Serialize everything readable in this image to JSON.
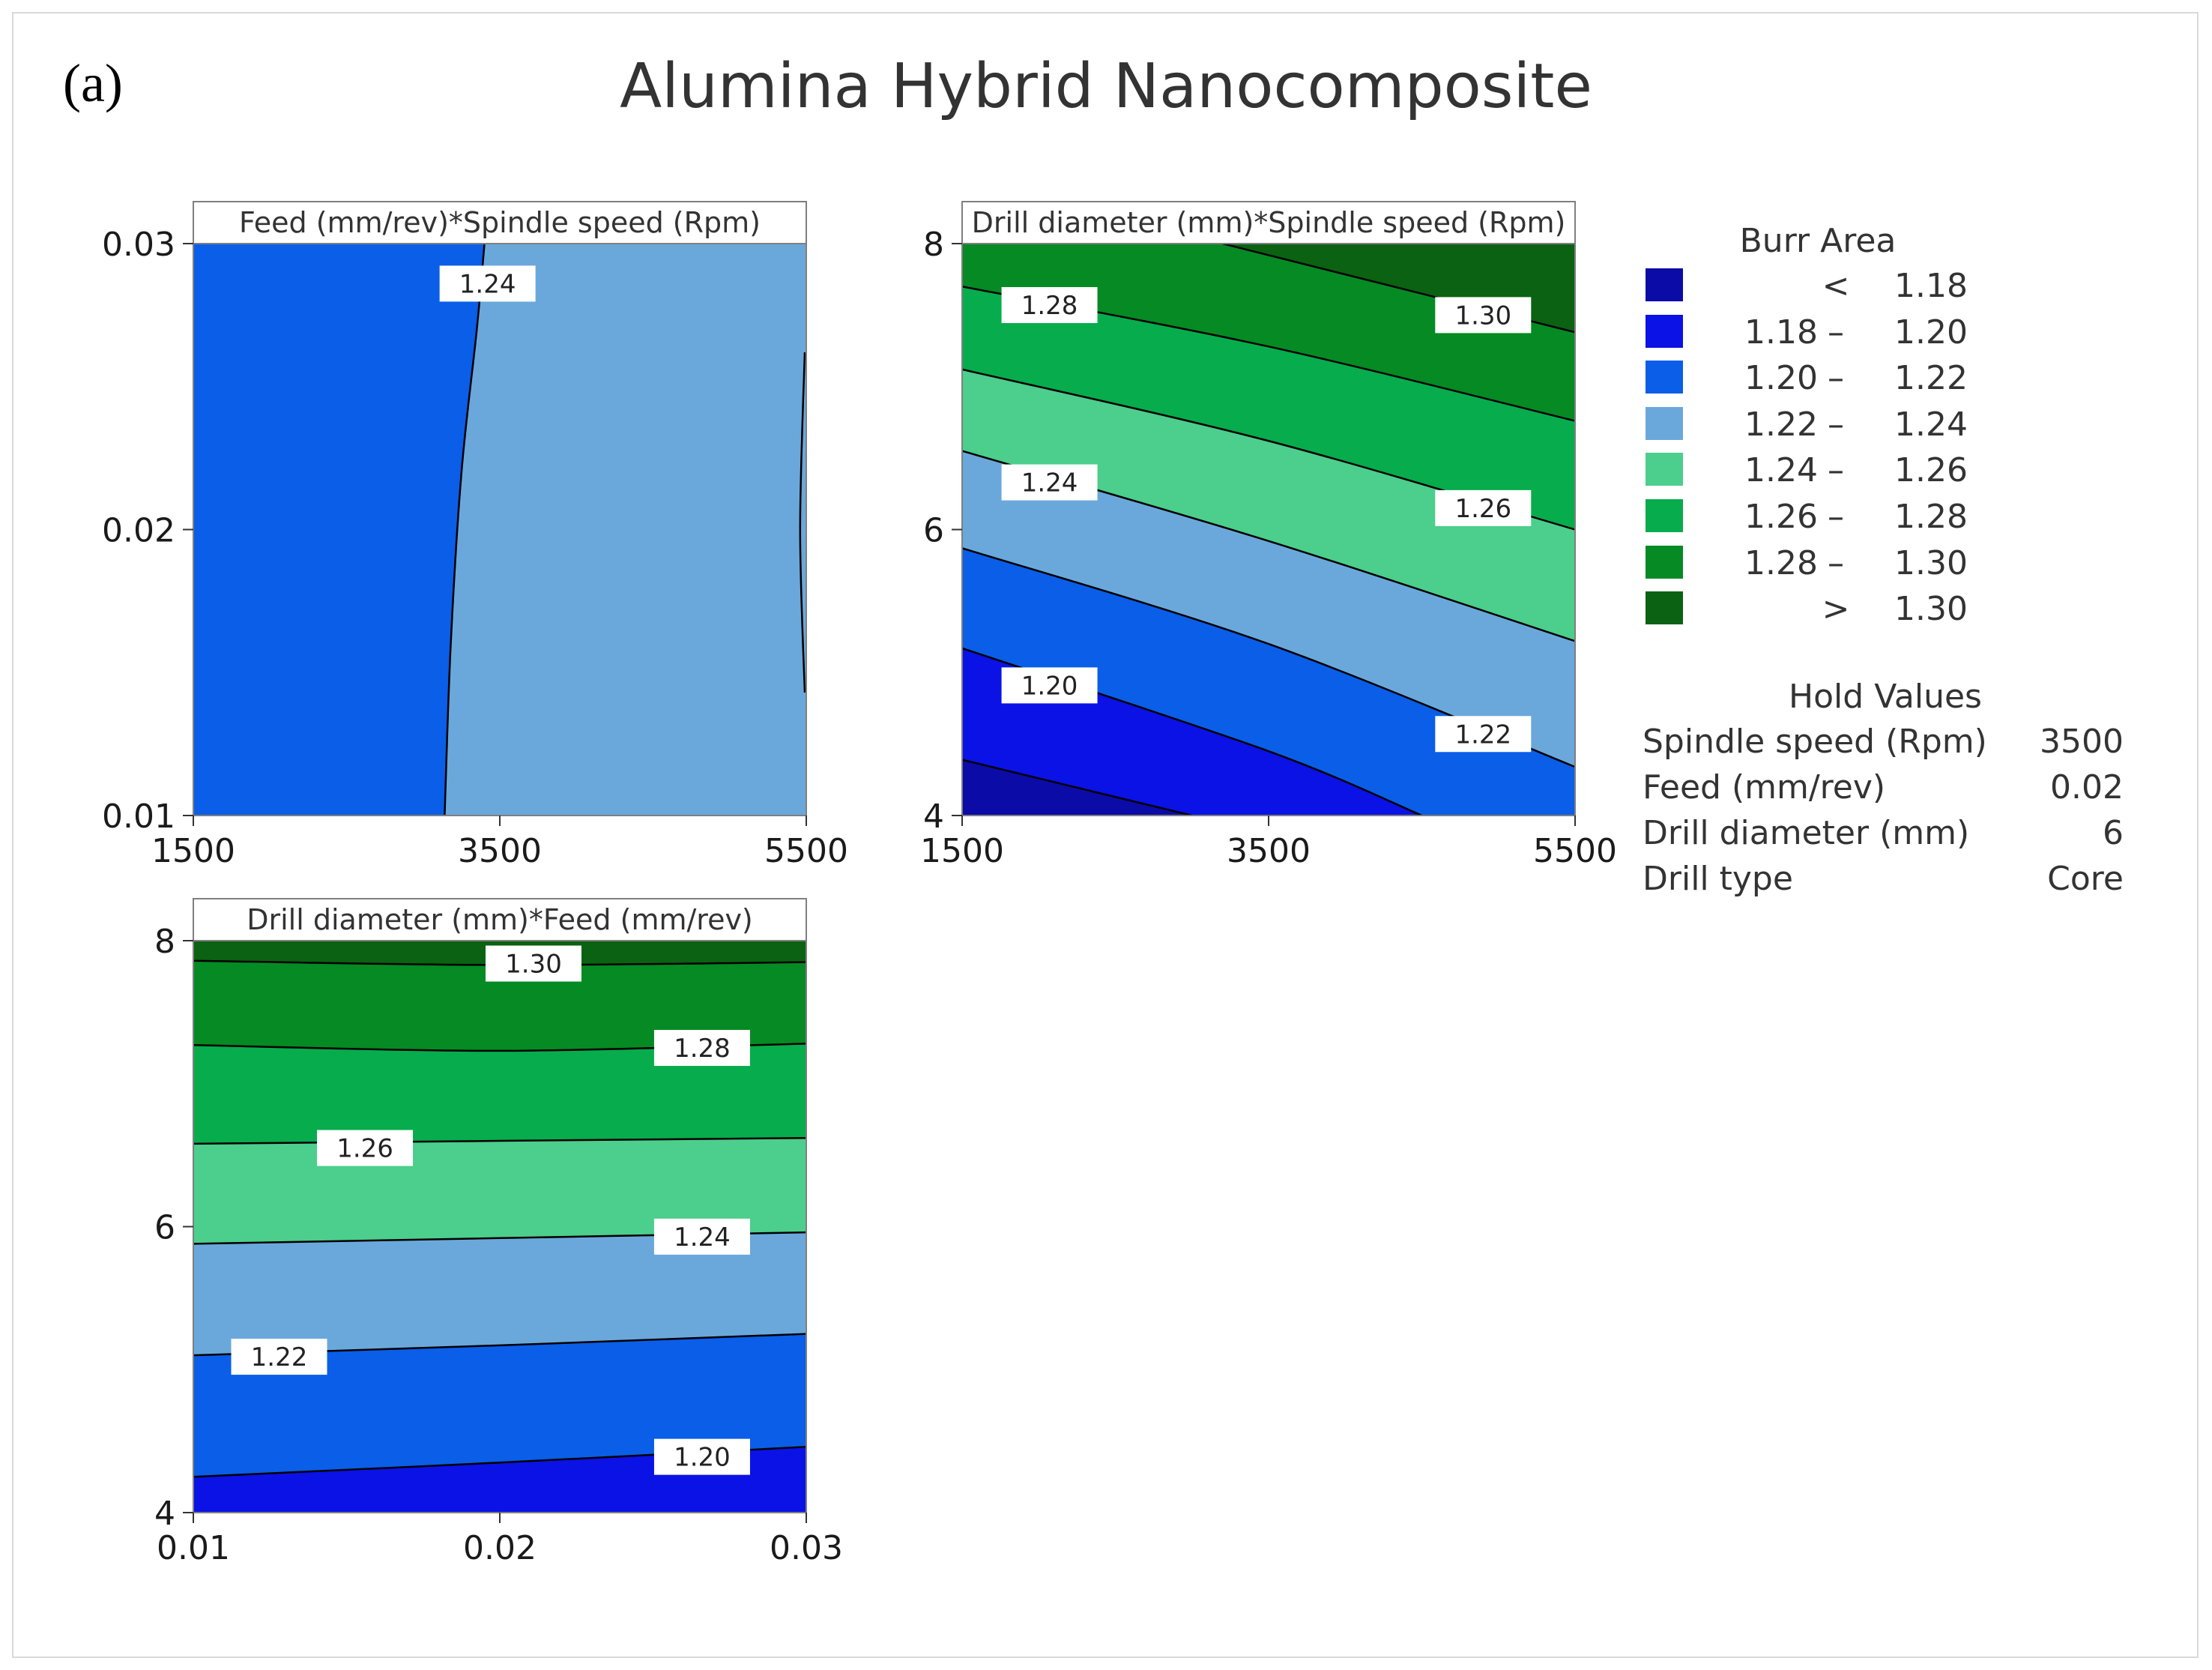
{
  "figure": {
    "panel_letter": "(a)",
    "title": "Alumina Hybrid Nanocomposite"
  },
  "legend": {
    "title": "Burr Area",
    "items": [
      {
        "lo": "",
        "op": "<",
        "hi": "1.18",
        "color": "#0b0ba8"
      },
      {
        "lo": "1.18",
        "op": "–",
        "hi": "1.20",
        "color": "#0a12e6"
      },
      {
        "lo": "1.20",
        "op": "–",
        "hi": "1.22",
        "color": "#0a5ee8"
      },
      {
        "lo": "1.22",
        "op": "–",
        "hi": "1.24",
        "color": "#6aa8dc"
      },
      {
        "lo": "1.24",
        "op": "–",
        "hi": "1.26",
        "color": "#4cce8c"
      },
      {
        "lo": "1.26",
        "op": "–",
        "hi": "1.28",
        "color": "#07ac4c"
      },
      {
        "lo": "1.28",
        "op": "–",
        "hi": "1.30",
        "color": "#058a24"
      },
      {
        "lo": "",
        "op": ">",
        "hi": "1.30",
        "color": "#0a6212"
      }
    ]
  },
  "hold_values": {
    "title": "Hold Values",
    "rows": [
      {
        "name": "Spindle speed (Rpm)",
        "value": "3500"
      },
      {
        "name": "Feed (mm/rev)",
        "value": "0.02"
      },
      {
        "name": "Drill diameter (mm)",
        "value": "6"
      },
      {
        "name": "Drill type",
        "value": "Core"
      }
    ]
  },
  "chart_data": [
    {
      "type": "contour",
      "title": "Feed (mm/rev)*Spindle speed (Rpm)",
      "xlim": [
        1500,
        5500
      ],
      "ylim": [
        0.01,
        0.03
      ],
      "x_ticks": [
        "1500",
        "3500",
        "5500"
      ],
      "y_ticks": [
        "0.01",
        "0.02",
        "0.03"
      ],
      "contours": [
        {
          "level": "1.24",
          "points": [
            [
              3400,
              0.03
            ],
            [
              3350,
              0.027
            ],
            [
              3250,
              0.022
            ],
            [
              3180,
              0.016
            ],
            [
              3140,
              0.01
            ]
          ],
          "label_at": [
            3420,
            0.0286
          ]
        },
        {
          "level": "1.26",
          "points": [
            [
              5490,
              0.0262
            ],
            [
              5460,
              0.02
            ],
            [
              5490,
              0.0143
            ]
          ]
        }
      ],
      "regions": [
        {
          "range": "1.22 – 1.24",
          "x_range": [
            1500,
            3400
          ]
        },
        {
          "range": "1.24 – 1.26",
          "x_range": [
            3140,
            5500
          ]
        }
      ]
    },
    {
      "type": "contour",
      "title": "Drill diameter (mm)*Spindle speed (Rpm)",
      "xlim": [
        1500,
        5500
      ],
      "ylim": [
        4,
        8
      ],
      "x_ticks": [
        "1500",
        "3500",
        "5500"
      ],
      "y_ticks": [
        "4",
        "6",
        "8"
      ],
      "contours": [
        {
          "level": "1.18",
          "points": [
            [
              1500,
              4.39
            ],
            [
              3000,
              4.0
            ]
          ]
        },
        {
          "level": "1.20",
          "points": [
            [
              1500,
              5.17
            ],
            [
              3500,
              4.45
            ],
            [
              4500,
              4.0
            ]
          ]
        },
        {
          "level": "1.22",
          "points": [
            [
              1500,
              5.87
            ],
            [
              3500,
              5.2
            ],
            [
              5500,
              4.34
            ]
          ]
        },
        {
          "level": "1.24",
          "points": [
            [
              1500,
              6.55
            ],
            [
              3500,
              5.92
            ],
            [
              5500,
              5.22
            ]
          ]
        },
        {
          "level": "1.26",
          "points": [
            [
              1500,
              7.12
            ],
            [
              3500,
              6.62
            ],
            [
              5500,
              6.0
            ]
          ]
        },
        {
          "level": "1.28",
          "points": [
            [
              1500,
              7.7
            ],
            [
              3500,
              7.28
            ],
            [
              5500,
              6.76
            ]
          ]
        },
        {
          "level": "1.30",
          "points": [
            [
              3200,
              8.0
            ],
            [
              5500,
              7.38
            ]
          ]
        }
      ],
      "labels": [
        {
          "text": "1.28",
          "at": [
            2070,
            7.57
          ]
        },
        {
          "text": "1.30",
          "at": [
            4900,
            7.5
          ]
        },
        {
          "text": "1.24",
          "at": [
            2070,
            6.33
          ]
        },
        {
          "text": "1.26",
          "at": [
            4900,
            6.15
          ]
        },
        {
          "text": "1.20",
          "at": [
            2070,
            4.91
          ]
        },
        {
          "text": "1.22",
          "at": [
            4900,
            4.57
          ]
        }
      ]
    },
    {
      "type": "contour",
      "title": "Drill diameter (mm)*Feed (mm/rev)",
      "xlim": [
        0.01,
        0.03
      ],
      "ylim": [
        4,
        8
      ],
      "x_ticks": [
        "0.01",
        "0.02",
        "0.03"
      ],
      "y_ticks": [
        "4",
        "6",
        "8"
      ],
      "contours": [
        {
          "level": "1.30",
          "points": [
            [
              0.01,
              7.86
            ],
            [
              0.02,
              7.83
            ],
            [
              0.03,
              7.85
            ]
          ]
        },
        {
          "level": "1.28",
          "points": [
            [
              0.01,
              7.27
            ],
            [
              0.02,
              7.23
            ],
            [
              0.03,
              7.28
            ]
          ]
        },
        {
          "level": "1.26",
          "points": [
            [
              0.01,
              6.58
            ],
            [
              0.02,
              6.6
            ],
            [
              0.03,
              6.62
            ]
          ]
        },
        {
          "level": "1.24",
          "points": [
            [
              0.01,
              5.88
            ],
            [
              0.02,
              5.92
            ],
            [
              0.03,
              5.96
            ]
          ]
        },
        {
          "level": "1.22",
          "points": [
            [
              0.01,
              5.1
            ],
            [
              0.02,
              5.17
            ],
            [
              0.03,
              5.25
            ]
          ]
        },
        {
          "level": "1.20",
          "points": [
            [
              0.01,
              4.25
            ],
            [
              0.02,
              4.35
            ],
            [
              0.03,
              4.46
            ]
          ]
        }
      ],
      "labels": [
        {
          "text": "1.30",
          "at": [
            0.0211,
            7.84
          ]
        },
        {
          "text": "1.28",
          "at": [
            0.0266,
            7.25
          ]
        },
        {
          "text": "1.26",
          "at": [
            0.0156,
            6.55
          ]
        },
        {
          "text": "1.24",
          "at": [
            0.0266,
            5.93
          ]
        },
        {
          "text": "1.22",
          "at": [
            0.0128,
            5.09
          ]
        },
        {
          "text": "1.20",
          "at": [
            0.0266,
            4.39
          ]
        }
      ]
    }
  ]
}
